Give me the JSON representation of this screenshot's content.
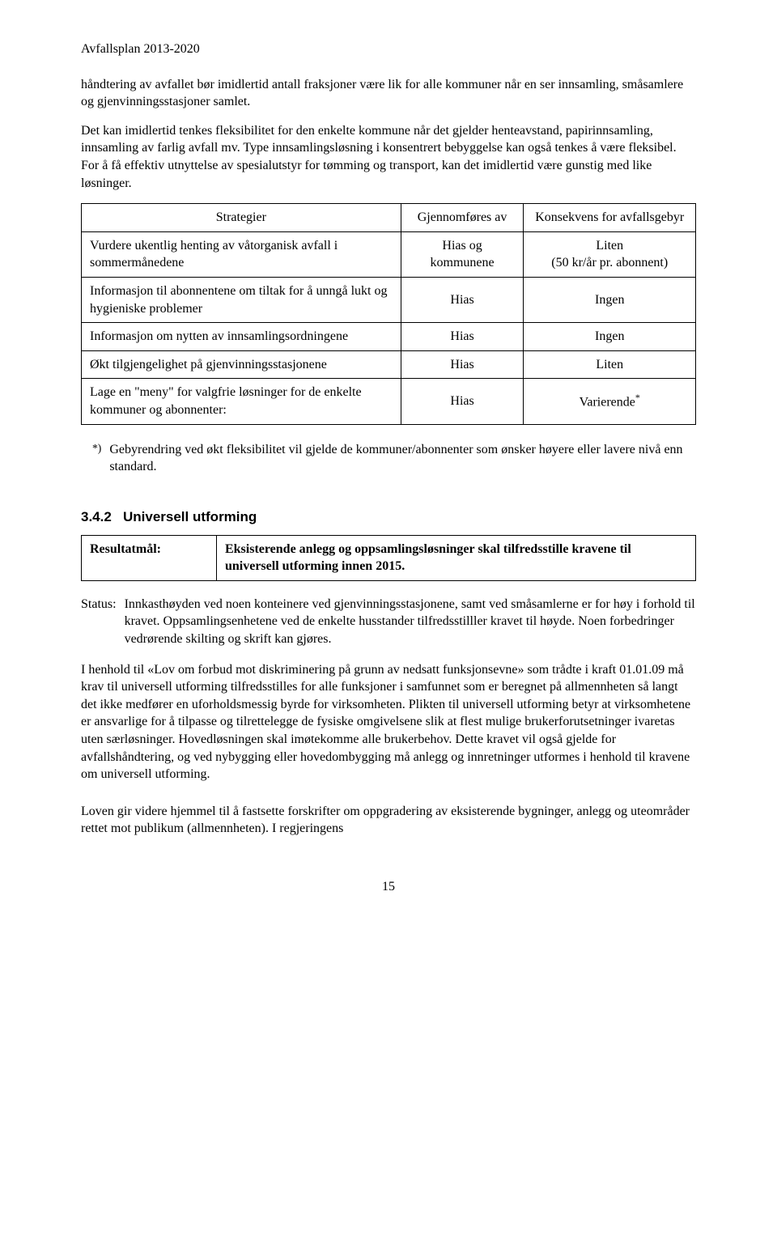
{
  "header": "Avfallsplan 2013-2020",
  "intro_p1": "håndtering av avfallet bør imidlertid antall fraksjoner være lik for alle kommuner når en ser innsamling, småsamlere og gjenvinningsstasjoner samlet.",
  "intro_p2": "Det kan imidlertid tenkes fleksibilitet for den enkelte kommune når det gjelder henteavstand, papirinnsamling, innsamling av farlig avfall mv. Type innsamlingsløsning i konsentrert bebyggelse kan også tenkes å være fleksibel. For å få effektiv utnyttelse av spesialutstyr for tømming og transport, kan det imidlertid være gunstig med like løsninger.",
  "table1": {
    "headers": [
      "Strategier",
      "Gjennomføres av",
      "Konsekvens for avfallsgebyr"
    ],
    "rows": [
      {
        "s": "Vurdere ukentlig henting av våtorganisk avfall i sommermånedene",
        "g": "Hias og kommunene",
        "k": "Liten\n(50 kr/år pr. abonnent)"
      },
      {
        "s": "Informasjon til abonnentene om tiltak for å unngå lukt og hygieniske problemer",
        "g": "Hias",
        "k": "Ingen"
      },
      {
        "s": "Informasjon om nytten av innsamlingsordningene",
        "g": "Hias",
        "k": "Ingen"
      },
      {
        "s": "Økt tilgjengelighet på gjenvinningsstasjonene",
        "g": "Hias",
        "k": "Liten"
      },
      {
        "s": "Lage en \"meny\" for valgfrie løsninger for de enkelte kommuner og abonnenter:",
        "g": "Hias",
        "k": "Varierende",
        "ksup": "*"
      }
    ]
  },
  "footnote_marker": "*)",
  "footnote_text": "Gebyrendring ved økt fleksibilitet vil gjelde de kommuner/abonnenter som ønsker høyere eller lavere nivå enn standard.",
  "section_number": "3.4.2",
  "section_title": "Universell utforming",
  "goal_label": "Resultatmål:",
  "goal_text": "Eksisterende anlegg og oppsamlingsløsninger skal tilfredsstille kravene til universell utforming innen 2015.",
  "status_label": "Status:",
  "status_text": "Innkasthøyden ved noen konteinere ved gjenvinningsstasjonene, samt ved småsamlerne er for høy i forhold til kravet. Oppsamlingsenhetene ved de enkelte husstander tilfredsstilller kravet til høyde. Noen forbedringer vedrørende skilting og skrift kan  gjøres.",
  "body_p1": "I henhold til «Lov om forbud mot diskriminering på grunn av nedsatt funksjonsevne» som trådte i kraft 01.01.09 må krav til universell utforming tilfredsstilles for alle funksjoner i samfunnet som er beregnet på allmennheten så langt det ikke medfører en uforholdsmessig byrde for virksomheten. Plikten til universell utforming betyr at virksomhetene er ansvarlige for å tilpasse og tilrettelegge de fysiske omgivelsene slik at flest mulige brukerforutsetninger ivaretas uten særløsninger. Hovedløsningen skal imøtekomme alle brukerbehov. Dette kravet vil også gjelde for avfallshåndtering, og ved nybygging eller hovedombygging må anlegg og innretninger utformes i henhold til kravene om universell utforming.",
  "body_p2": "Loven gir videre hjemmel til å fastsette forskrifter om oppgradering av eksisterende bygninger, anlegg og uteområder rettet mot publikum (allmennheten). I regjeringens",
  "page_number": "15"
}
